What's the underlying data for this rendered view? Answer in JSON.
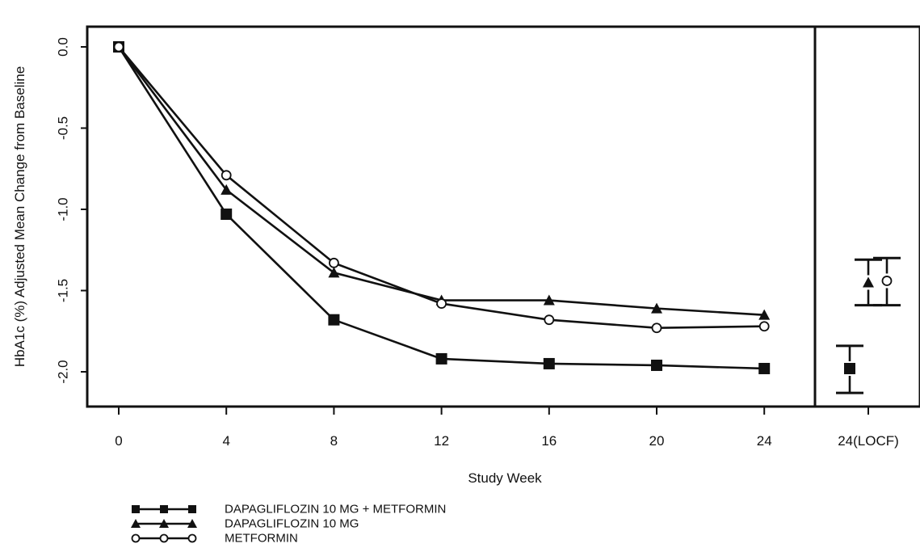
{
  "chart_data": {
    "type": "line",
    "ylabel": "HbA1c (%) Adjusted Mean Change from Baseline",
    "xlabel": "Study Week",
    "x": [
      0,
      4,
      8,
      12,
      16,
      20,
      24
    ],
    "x_ticks": [
      "0",
      "4",
      "8",
      "12",
      "16",
      "20",
      "24"
    ],
    "locf_label": "24(LOCF)",
    "y_ticks": [
      "0.0",
      "-0.5",
      "-1.0",
      "-1.5",
      "-2.0"
    ],
    "ylim": [
      -2.2,
      0.1
    ],
    "grid": false,
    "legend_position": "bottom-left",
    "series": [
      {
        "name": "DAPAGLIFLOZIN 10 MG + METFORMIN",
        "marker": "square",
        "values": [
          0.0,
          -1.03,
          -1.68,
          -1.92,
          -1.95,
          -1.96,
          -1.98
        ],
        "locf": {
          "mean": -1.98,
          "low": -2.13,
          "high": -1.84
        }
      },
      {
        "name": "DAPAGLIFLOZIN 10 MG",
        "marker": "triangle",
        "values": [
          0.0,
          -0.88,
          -1.39,
          -1.56,
          -1.56,
          -1.61,
          -1.65
        ],
        "locf": {
          "mean": -1.45,
          "low": -1.59,
          "high": -1.31
        }
      },
      {
        "name": "METFORMIN",
        "marker": "circle",
        "values": [
          0.0,
          -0.79,
          -1.33,
          -1.58,
          -1.68,
          -1.73,
          -1.72
        ],
        "locf": {
          "mean": -1.44,
          "low": -1.59,
          "high": -1.3
        }
      }
    ]
  }
}
